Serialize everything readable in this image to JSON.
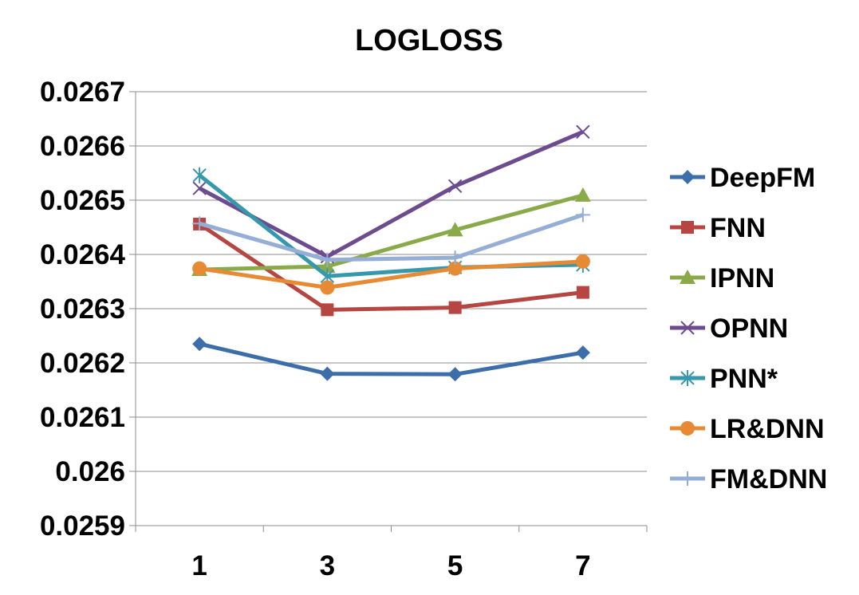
{
  "chart_data": {
    "type": "line",
    "title": "LOGLOSS",
    "xlabel": "",
    "ylabel": "",
    "categories": [
      "1",
      "3",
      "5",
      "7"
    ],
    "ylim": [
      0.0259,
      0.0267
    ],
    "ytick_labels": [
      "0.0267",
      "0.0266",
      "0.0265",
      "0.0264",
      "0.0263",
      "0.0262",
      "0.0261",
      "0.026",
      "0.0259"
    ],
    "grid": "horizontal",
    "legend_position": "right",
    "series": [
      {
        "name": "DeepFM",
        "color": "#3C6EAA",
        "marker": "diamond",
        "values": [
          0.026235,
          0.02618,
          0.026179,
          0.026219
        ]
      },
      {
        "name": "FNN",
        "color": "#B54642",
        "marker": "square",
        "values": [
          0.026456,
          0.026298,
          0.026302,
          0.02633
        ]
      },
      {
        "name": "IPNN",
        "color": "#8AAA4A",
        "marker": "triangle",
        "values": [
          0.026372,
          0.026378,
          0.026445,
          0.026509
        ]
      },
      {
        "name": "OPNN",
        "color": "#6C4C8E",
        "marker": "x",
        "values": [
          0.026522,
          0.026396,
          0.026526,
          0.026626
        ]
      },
      {
        "name": "PNN*",
        "color": "#3698AD",
        "marker": "asterisk",
        "values": [
          0.026546,
          0.02636,
          0.026376,
          0.026381
        ]
      },
      {
        "name": "LR&DNN",
        "color": "#E68A34",
        "marker": "circle",
        "values": [
          0.026374,
          0.026339,
          0.026374,
          0.026387
        ]
      },
      {
        "name": "FM&DNN",
        "color": "#95AED6",
        "marker": "plus",
        "values": [
          0.026457,
          0.02639,
          0.026394,
          0.026473
        ]
      }
    ]
  }
}
